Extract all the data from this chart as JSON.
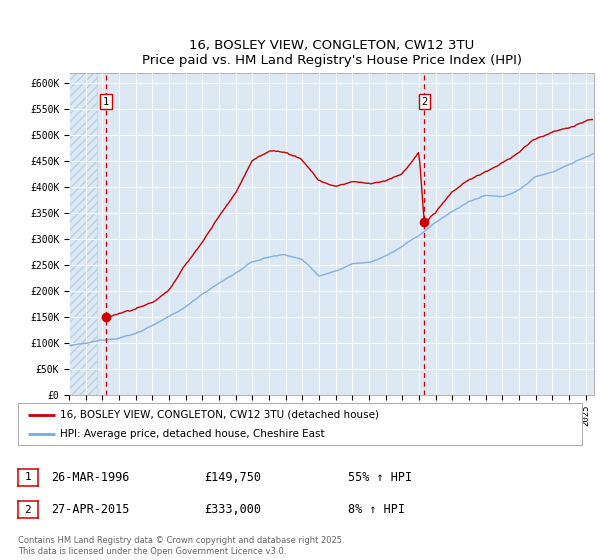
{
  "title": "16, BOSLEY VIEW, CONGLETON, CW12 3TU",
  "subtitle": "Price paid vs. HM Land Registry's House Price Index (HPI)",
  "ylim": [
    0,
    620000
  ],
  "xlim_start": 1994.0,
  "xlim_end": 2025.5,
  "background_color": "#dce9f5",
  "grid_color": "#ffffff",
  "red_color": "#cc0000",
  "blue_color": "#7aaadd",
  "marker1_x": 1996.23,
  "marker1_y": 149750,
  "marker2_x": 2015.32,
  "marker2_y": 333000,
  "vline1_x": 1996.23,
  "vline2_x": 2015.32,
  "legend_line1": "16, BOSLEY VIEW, CONGLETON, CW12 3TU (detached house)",
  "legend_line2": "HPI: Average price, detached house, Cheshire East",
  "table_rows": [
    {
      "num": "1",
      "date": "26-MAR-1996",
      "price": "£149,750",
      "change": "55% ↑ HPI"
    },
    {
      "num": "2",
      "date": "27-APR-2015",
      "price": "£333,000",
      "change": "8% ↑ HPI"
    }
  ],
  "footer": "Contains HM Land Registry data © Crown copyright and database right 2025.\nThis data is licensed under the Open Government Licence v3.0.",
  "ytick_labels": [
    "£0",
    "£50K",
    "£100K",
    "£150K",
    "£200K",
    "£250K",
    "£300K",
    "£350K",
    "£400K",
    "£450K",
    "£500K",
    "£550K",
    "£600K"
  ],
  "ytick_values": [
    0,
    50000,
    100000,
    150000,
    200000,
    250000,
    300000,
    350000,
    400000,
    450000,
    500000,
    550000,
    600000
  ],
  "hpi_knots_x": [
    1994,
    1995,
    1996,
    1997,
    1998,
    1999,
    2000,
    2001,
    2002,
    2003,
    2004,
    2005,
    2006,
    2007,
    2008,
    2009,
    2010,
    2011,
    2012,
    2013,
    2014,
    2015,
    2016,
    2017,
    2018,
    2019,
    2020,
    2021,
    2022,
    2023,
    2024,
    2025,
    2025.5
  ],
  "hpi_knots_y": [
    95000,
    97000,
    103000,
    110000,
    118000,
    135000,
    150000,
    168000,
    195000,
    215000,
    235000,
    255000,
    265000,
    270000,
    260000,
    230000,
    240000,
    255000,
    260000,
    272000,
    290000,
    310000,
    335000,
    355000,
    375000,
    385000,
    380000,
    395000,
    420000,
    430000,
    445000,
    460000,
    465000
  ],
  "price_knots_x": [
    1996.1,
    1996.23,
    1997,
    1998,
    1999,
    2000,
    2001,
    2002,
    2003,
    2004,
    2005,
    2006,
    2007,
    2008,
    2009,
    2010,
    2011,
    2012,
    2013,
    2014,
    2015.0,
    2015.32,
    2016,
    2017,
    2018,
    2019,
    2020,
    2021,
    2022,
    2023,
    2024,
    2025,
    2025.4
  ],
  "price_knots_y": [
    149750,
    149750,
    158000,
    168000,
    180000,
    205000,
    250000,
    295000,
    345000,
    390000,
    455000,
    470000,
    470000,
    455000,
    415000,
    405000,
    415000,
    410000,
    415000,
    430000,
    470000,
    333000,
    355000,
    390000,
    415000,
    430000,
    445000,
    465000,
    490000,
    505000,
    515000,
    525000,
    530000
  ]
}
